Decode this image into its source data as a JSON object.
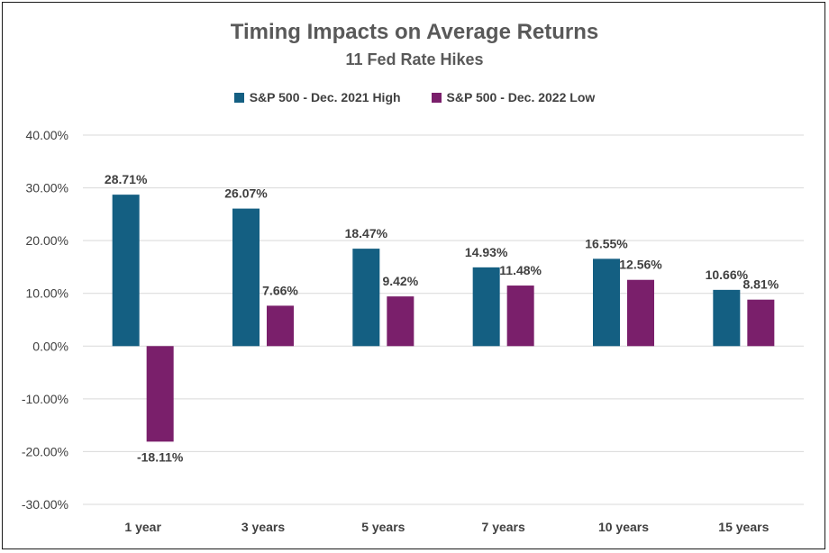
{
  "chart_data": {
    "type": "bar",
    "title": "Timing Impacts on Average Returns",
    "subtitle": "11 Fed Rate Hikes",
    "categories": [
      "1 year",
      "3 years",
      "5 years",
      "7 years",
      "10 years",
      "15 years"
    ],
    "series": [
      {
        "name": "S&P 500 - Dec. 2021 High",
        "color": "#145f82",
        "values": [
          28.71,
          26.07,
          18.47,
          14.93,
          16.55,
          10.66
        ],
        "labels": [
          "28.71%",
          "26.07%",
          "18.47%",
          "14.93%",
          "16.55%",
          "10.66%"
        ]
      },
      {
        "name": "S&P 500 - Dec. 2022 Low",
        "color": "#7a1f6b",
        "values": [
          -18.11,
          7.66,
          9.42,
          11.48,
          12.56,
          8.81
        ],
        "labels": [
          "-18.11%",
          "7.66%",
          "9.42%",
          "11.48%",
          "12.56%",
          "8.81%"
        ]
      }
    ],
    "ylim": [
      -30,
      40
    ],
    "yticks": [
      40,
      30,
      20,
      10,
      0,
      -10,
      -20,
      -30
    ],
    "ytick_labels": [
      "40.00%",
      "30.00%",
      "20.00%",
      "10.00%",
      "0.00%",
      "-10.00%",
      "-20.00%",
      "-30.00%"
    ],
    "grid": true,
    "legend_position": "top"
  }
}
